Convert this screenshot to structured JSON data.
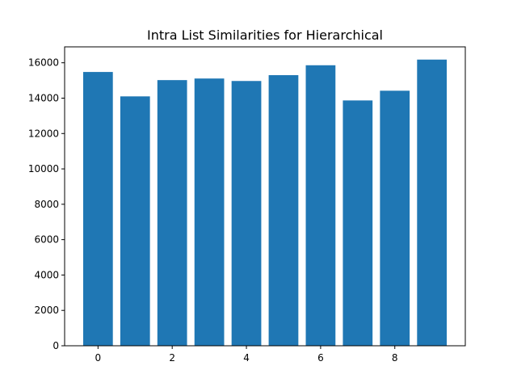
{
  "chart_data": {
    "type": "bar",
    "title": "Intra List Similarities for Hierarchical",
    "xlabel": "",
    "ylabel": "",
    "categories": [
      0,
      1,
      2,
      3,
      4,
      5,
      6,
      7,
      8,
      9
    ],
    "values": [
      15480,
      14100,
      15020,
      15110,
      14970,
      15300,
      15860,
      13870,
      14420,
      16180
    ],
    "xlim": [
      -0.9,
      9.9
    ],
    "ylim": [
      0,
      16900
    ],
    "xticks": [
      0,
      2,
      4,
      6,
      8
    ],
    "yticks": [
      0,
      2000,
      4000,
      6000,
      8000,
      10000,
      12000,
      14000,
      16000
    ],
    "bar_color": "#1f77b4",
    "grid": false,
    "legend": "none"
  }
}
